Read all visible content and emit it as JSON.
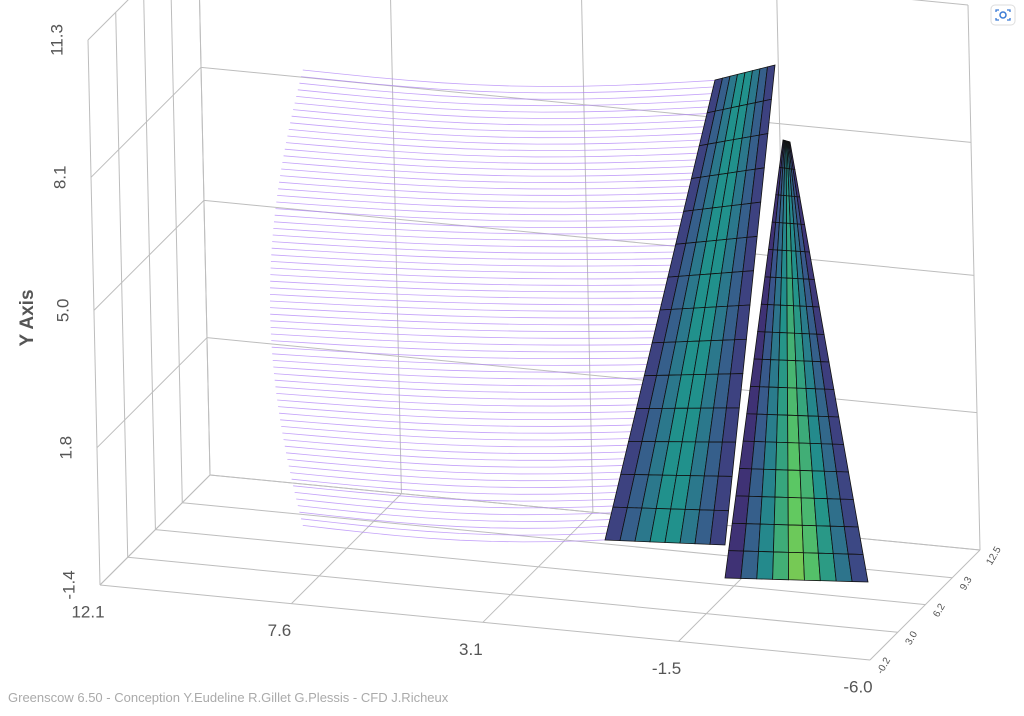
{
  "chart_data": {
    "type": "surface3d",
    "ylabel": "Y Axis",
    "xlim": [
      12.1,
      -6
    ],
    "xticks": [
      12.1,
      7.6,
      3.1,
      -1.5,
      {
        "value": -6,
        "label": "-6.0"
      }
    ],
    "ylim": [
      -1.4,
      11.3
    ],
    "yticks": [
      -1.4,
      1.8,
      {
        "value": 5,
        "label": "5.0"
      },
      8.1,
      11.3
    ],
    "zlim": [
      -0.2,
      12.5
    ],
    "zticks": [
      -0.2,
      {
        "value": 3,
        "label": "3.0"
      },
      6.2,
      9.3,
      12.5
    ],
    "grid": true
  },
  "footer": "Greenscow 6.50 - Conception Y.Eudeline R.Gillet G.Plessis - CFD J.Richeux"
}
